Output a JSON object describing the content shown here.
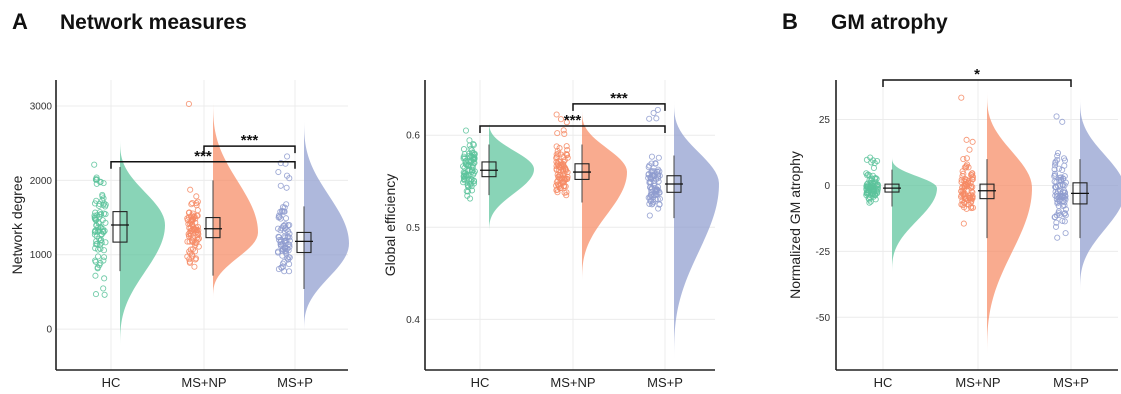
{
  "panels": [
    {
      "letter": "A",
      "title": "Network measures"
    },
    {
      "letter": "B",
      "title": "GM atrophy"
    }
  ],
  "colors": {
    "HC": "#5cc39b",
    "MS+NP": "#f68a64",
    "MS+P": "#8f9ccf",
    "grid": "#ececec",
    "axis": "#222222"
  },
  "chart_data": [
    {
      "type": "raincloud",
      "title": "",
      "xlabel": "",
      "ylabel": "Network degree",
      "categories": [
        "HC",
        "MS+NP",
        "MS+P"
      ],
      "ylim": [
        -550,
        3350
      ],
      "yticks": [
        0,
        1000,
        2000,
        3000
      ],
      "grid": true,
      "series": [
        {
          "name": "HC",
          "median": 1400,
          "q1": 1170,
          "q3": 1580,
          "whisker_low": 780,
          "whisker_high": 2180,
          "density_min": -280,
          "density_max": 2580,
          "density_peak": 1400
        },
        {
          "name": "MS+NP",
          "median": 1350,
          "q1": 1230,
          "q3": 1500,
          "whisker_low": 720,
          "whisker_high": 2000,
          "density_min": 400,
          "density_max": 3120,
          "density_peak": 1300
        },
        {
          "name": "MS+P",
          "median": 1180,
          "q1": 1030,
          "q3": 1300,
          "whisker_low": 540,
          "whisker_high": 1650,
          "density_min": -60,
          "density_max": 2870,
          "density_peak": 1150
        }
      ],
      "significance": [
        {
          "from": "MS+NP",
          "to": "MS+P",
          "y": 2460,
          "label": "***"
        },
        {
          "from": "HC",
          "to": "MS+P",
          "y": 2250,
          "label": "***"
        }
      ]
    },
    {
      "type": "raincloud",
      "title": "",
      "xlabel": "",
      "ylabel": "Global efficiency",
      "categories": [
        "HC",
        "MS+NP",
        "MS+P"
      ],
      "ylim": [
        0.345,
        0.66
      ],
      "yticks": [
        0.4,
        0.5,
        0.6
      ],
      "grid": true,
      "series": [
        {
          "name": "HC",
          "median": 0.562,
          "q1": 0.555,
          "q3": 0.571,
          "whisker_low": 0.535,
          "whisker_high": 0.59,
          "density_min": 0.493,
          "density_max": 0.617,
          "density_peak": 0.563
        },
        {
          "name": "MS+NP",
          "median": 0.56,
          "q1": 0.552,
          "q3": 0.569,
          "whisker_low": 0.527,
          "whisker_high": 0.59,
          "density_min": 0.437,
          "density_max": 0.629,
          "density_peak": 0.56
        },
        {
          "name": "MS+P",
          "median": 0.547,
          "q1": 0.538,
          "q3": 0.556,
          "whisker_low": 0.51,
          "whisker_high": 0.578,
          "density_min": 0.352,
          "density_max": 0.638,
          "density_peak": 0.547
        }
      ],
      "significance": [
        {
          "from": "MS+NP",
          "to": "MS+P",
          "y": 0.634,
          "label": "***"
        },
        {
          "from": "HC",
          "to": "MS+P",
          "y": 0.61,
          "label": "***"
        }
      ]
    },
    {
      "type": "raincloud",
      "title": "",
      "xlabel": "",
      "ylabel": "Normalized GM atrophy",
      "categories": [
        "HC",
        "MS+NP",
        "MS+P"
      ],
      "ylim": [
        -70,
        40
      ],
      "yticks": [
        25,
        0,
        -25,
        -50
      ],
      "grid": true,
      "series": [
        {
          "name": "HC",
          "median": -1,
          "q1": -2.5,
          "q3": 0.5,
          "whisker_low": -8,
          "whisker_high": 6,
          "density_min": -34,
          "density_max": 11,
          "density_peak": -1
        },
        {
          "name": "MS+NP",
          "median": -2,
          "q1": -5,
          "q3": 0.5,
          "whisker_low": -20,
          "whisker_high": 10,
          "density_min": -66,
          "density_max": 36,
          "density_peak": -1
        },
        {
          "name": "MS+P",
          "median": -3,
          "q1": -7,
          "q3": 1,
          "whisker_low": -20,
          "whisker_high": 10,
          "density_min": -41,
          "density_max": 34,
          "density_peak": -2
        }
      ],
      "significance": [
        {
          "from": "HC",
          "to": "MS+P",
          "y": 40,
          "label": "*"
        }
      ]
    }
  ]
}
